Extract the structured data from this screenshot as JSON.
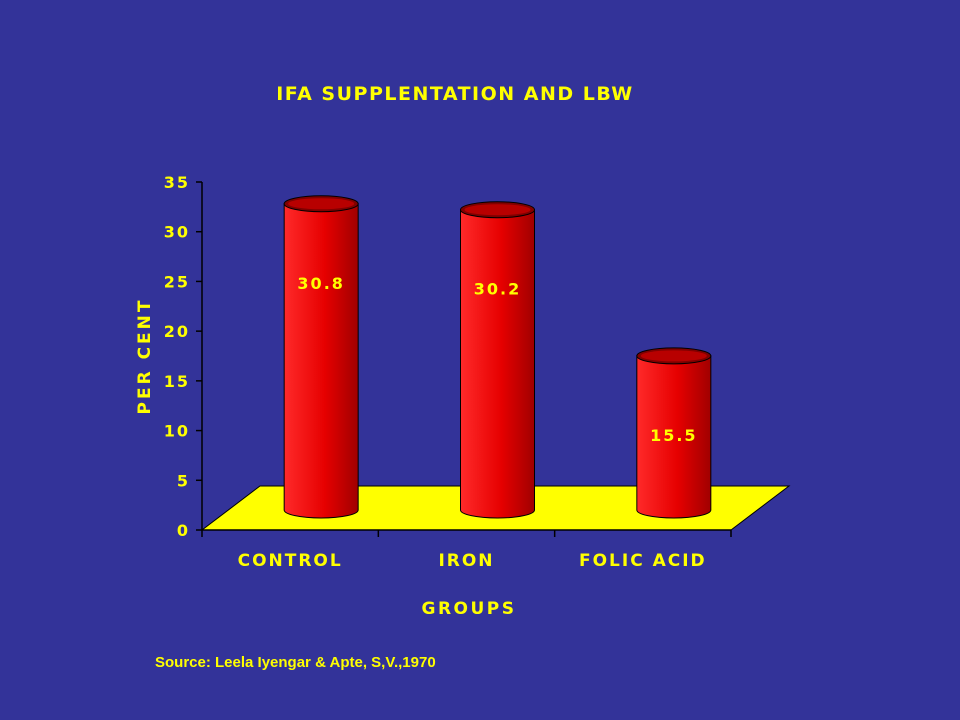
{
  "chart_data": {
    "type": "bar",
    "title": "IFA SUPPLENTATION AND LBW",
    "xlabel": "GROUPS",
    "ylabel": "PER CENT",
    "categories": [
      "CONTROL",
      "IRON",
      "FOLIC ACID"
    ],
    "values": [
      30.8,
      30.2,
      15.5
    ],
    "data_labels": [
      "30.8",
      "30.2",
      "15.5"
    ],
    "ylim": [
      0,
      35
    ],
    "yticks": [
      0,
      5,
      10,
      15,
      20,
      25,
      30,
      35
    ],
    "grid": false,
    "legend": "none",
    "style": "3d-cylinder",
    "colors": {
      "background": "#333399",
      "text": "#FFFF00",
      "floor": "#FFFF00",
      "bar": "#FF0000",
      "bar_dark": "#800000",
      "axis": "#000000"
    }
  },
  "source": "Source: Leela Iyengar & Apte, S,V.,1970"
}
